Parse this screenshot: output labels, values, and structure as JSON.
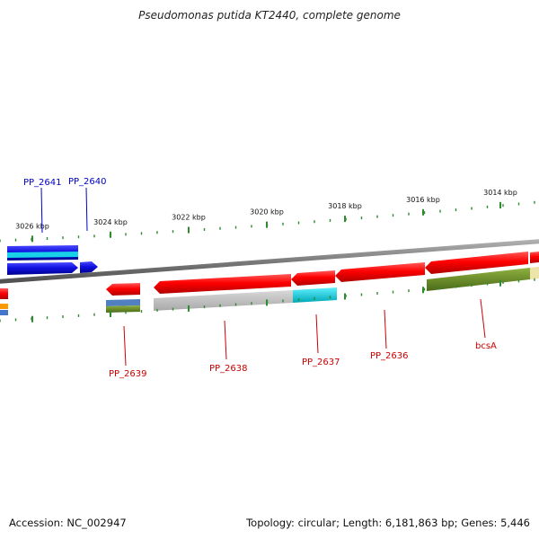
{
  "title": "Pseudomonas putida KT2440, complete genome",
  "footer": {
    "accession": "Accession: NC_002947",
    "summary": "Topology: circular; Length: 6,181,863 bp; Genes: 5,446"
  },
  "colors": {
    "backbone": "#8a8a8a",
    "forward_gene": "#1010e0",
    "reverse_gene": "#e80000",
    "cyan_feature": "#10c8d8",
    "olive_feature": "#6b8e23",
    "grey_feature": "#c0c0c0",
    "pale_feature": "#e8e0a0",
    "orange_feature": "#ff9900",
    "tick": "#2e8b2e",
    "forward_label": "#0000c8",
    "reverse_label": "#cc0000"
  },
  "scale_labels": [
    "3026 kbp",
    "3024 kbp",
    "3022 kbp",
    "3020 kbp",
    "3018 kbp",
    "3016 kbp",
    "3014 kbp"
  ],
  "forward_gene_labels": [
    "PP_2641",
    "PP_2640"
  ],
  "reverse_gene_labels": [
    "PP_2639",
    "PP_2638",
    "PP_2637",
    "PP_2636",
    "bcsA"
  ]
}
